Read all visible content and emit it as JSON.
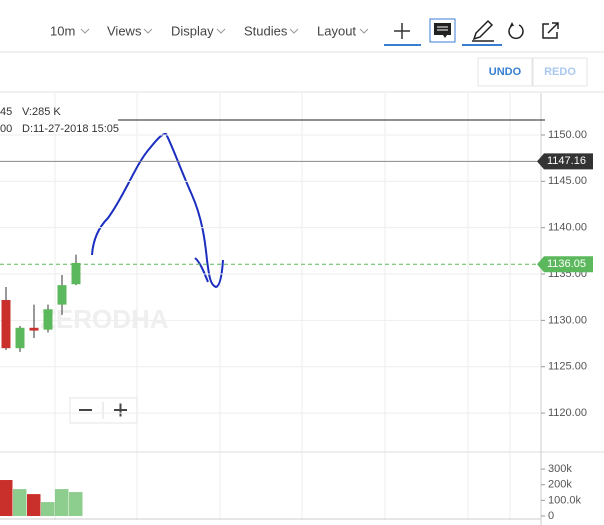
{
  "toolbar": {
    "interval": "10m",
    "menus": [
      "Views",
      "Display",
      "Studies",
      "Layout"
    ]
  },
  "actions": {
    "undo": "UNDO",
    "redo": "REDO"
  },
  "legend": [
    [
      "45",
      "V:285 K"
    ],
    [
      "00",
      "D:11-27-2018 15:05"
    ]
  ],
  "watermark": "ZERODHA",
  "chart_data": {
    "type": "candlestick",
    "ylim": [
      1115.8,
      1154.53
    ],
    "yticks": [
      {
        "value": 1150,
        "label": "1150.00"
      },
      {
        "value": 1145,
        "label": "1145.00"
      },
      {
        "value": 1140,
        "label": "1140.00"
      },
      {
        "value": 1135,
        "label": "1135.00"
      },
      {
        "value": 1130,
        "label": "1130.00"
      },
      {
        "value": 1125,
        "label": "1125.00"
      },
      {
        "value": 1120,
        "label": "1120.00"
      }
    ],
    "grid": true,
    "up_color": "#5cb85c",
    "down_color": "#c9302c",
    "candles": {
      "open": [
        1132.2,
        1127.0,
        1129.2,
        1129.0,
        1131.7,
        1133.9
      ],
      "high": [
        1133.6,
        1129.4,
        1131.7,
        1131.7,
        1134.9,
        1137.1
      ],
      "low": [
        1126.8,
        1126.6,
        1128.1,
        1128.7,
        1130.6,
        1133.8
      ],
      "close": [
        1127.0,
        1129.2,
        1128.9,
        1131.2,
        1133.8,
        1136.2
      ]
    },
    "price_labels": [
      {
        "value": 1147.16,
        "color": "#333333"
      },
      {
        "value": 1136.05,
        "color": "#5cb85c"
      }
    ],
    "volume": {
      "values": [
        230000,
        172000,
        140000,
        89000,
        172000,
        153000
      ],
      "ylim": [
        0,
        390000
      ],
      "yticks": [
        {
          "value": 300000,
          "label": "300k"
        },
        {
          "value": 200000,
          "label": "200k"
        },
        {
          "value": 100000,
          "label": "100.0k"
        },
        0
      ]
    }
  }
}
